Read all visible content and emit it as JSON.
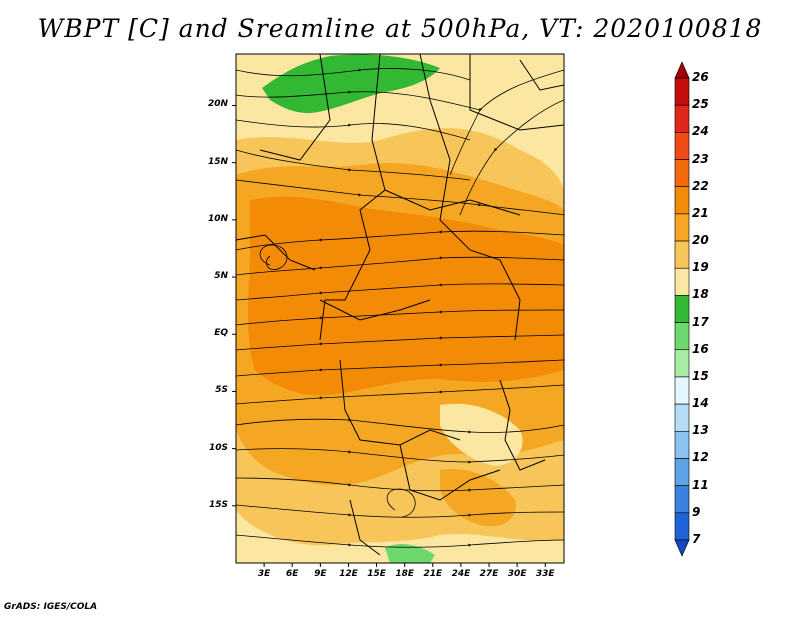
{
  "title": "WBPT [C] and Sreamline at 500hPa, VT: 2020100818",
  "footer": "GrADS: IGES/COLA",
  "map": {
    "lat_labels": [
      "20N",
      "15N",
      "10N",
      "5N",
      "EQ",
      "5S",
      "10S",
      "15S"
    ],
    "lat_values": [
      20,
      15,
      10,
      5,
      0,
      -5,
      -10,
      -15
    ],
    "lon_labels": [
      "3E",
      "6E",
      "9E",
      "12E",
      "15E",
      "18E",
      "21E",
      "24E",
      "27E",
      "30E",
      "33E"
    ],
    "lon_values": [
      3,
      6,
      9,
      12,
      15,
      18,
      21,
      24,
      27,
      30,
      33
    ],
    "lat_range": [
      -20,
      24.5
    ],
    "lon_range": [
      0,
      35
    ]
  },
  "colorbar": {
    "labels": [
      "26",
      "25",
      "24",
      "23",
      "22",
      "21",
      "20",
      "19",
      "18",
      "17",
      "16",
      "15",
      "14",
      "13",
      "12",
      "11",
      "9",
      "7"
    ],
    "colors": [
      "#a50000",
      "#c40d0d",
      "#e0271d",
      "#f04a17",
      "#f26a0c",
      "#f48b06",
      "#f5a623",
      "#f8c55b",
      "#fbe7a1",
      "#33b833",
      "#6dd96d",
      "#a8eca8",
      "#e4f6ff",
      "#b7dcf7",
      "#8cc2f0",
      "#5ea3e8",
      "#3b82e0",
      "#1f63d6",
      "#1447c2"
    ]
  },
  "colors": {
    "low": "#fbe7a1",
    "mid": "#f8c55b",
    "high": "#f5a623",
    "peak": "#f48b06",
    "green": "#33b833",
    "green_light": "#6dd96d"
  }
}
